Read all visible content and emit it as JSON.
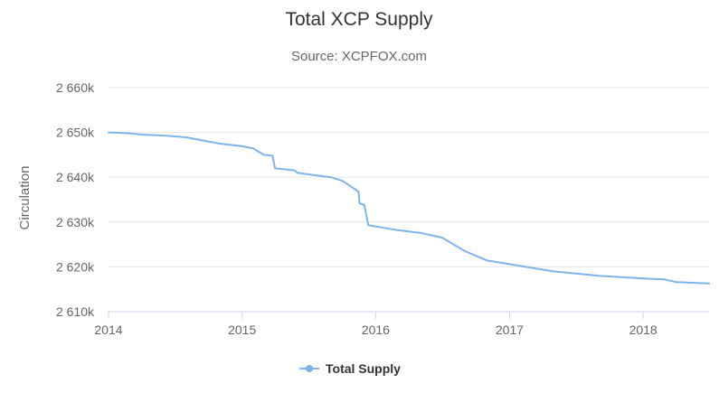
{
  "chart_data": {
    "type": "line",
    "title": "Total XCP Supply",
    "subtitle": "Source: XCPFOX.com",
    "xlabel": "",
    "ylabel": "Circulation",
    "x_ticks": [
      "2014",
      "2015",
      "2016",
      "2017",
      "2018"
    ],
    "y_ticks": [
      "2 610k",
      "2 620k",
      "2 630k",
      "2 640k",
      "2 650k",
      "2 660k"
    ],
    "xlim": [
      "2014-01-01",
      "2018-06-30"
    ],
    "ylim": [
      2610000,
      2661000
    ],
    "grid": "horizontal",
    "legend_position": "bottom",
    "colors": {
      "series": "#7cb5ec",
      "grid": "#e6e6e6",
      "axis": "#ccd6eb"
    },
    "series": [
      {
        "name": "Total Supply",
        "x": [
          "2014-01-01",
          "2014-03-01",
          "2014-04-01",
          "2014-06-01",
          "2014-08-01",
          "2014-09-15",
          "2014-11-01",
          "2015-01-01",
          "2015-02-01",
          "2015-03-01",
          "2015-03-25",
          "2015-04-01",
          "2015-05-25",
          "2015-06-01",
          "2015-07-15",
          "2015-09-01",
          "2015-10-01",
          "2015-10-15",
          "2015-11-15",
          "2015-11-18",
          "2015-12-01",
          "2015-12-12",
          "2016-01-01",
          "2016-03-01",
          "2016-05-01",
          "2016-07-01",
          "2016-08-01",
          "2016-09-01",
          "2016-11-01",
          "2017-01-01",
          "2017-03-01",
          "2017-05-01",
          "2017-07-01",
          "2017-09-01",
          "2017-11-01",
          "2018-01-01",
          "2018-03-01",
          "2018-04-01",
          "2018-06-30"
        ],
        "values": [
          2650000,
          2649800,
          2649500,
          2649300,
          2648900,
          2648200,
          2647500,
          2646900,
          2646400,
          2645000,
          2644800,
          2642000,
          2641500,
          2641000,
          2640500,
          2640000,
          2639200,
          2638500,
          2636800,
          2634200,
          2633800,
          2629300,
          2629000,
          2628200,
          2627600,
          2626500,
          2625000,
          2623500,
          2621400,
          2620600,
          2619800,
          2619000,
          2618500,
          2618000,
          2617700,
          2617400,
          2617200,
          2616600,
          2616300
        ]
      }
    ]
  }
}
